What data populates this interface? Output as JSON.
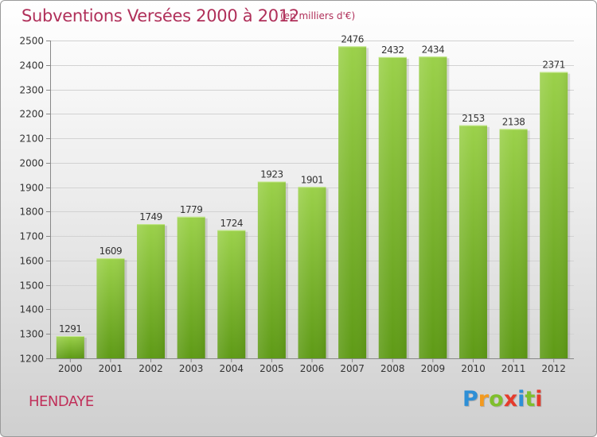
{
  "title": "Subventions Versées 2000 à 2012",
  "subtitle": "(en milliers d'€)",
  "place": "HENDAYE",
  "logo": {
    "text": "Proxiti",
    "letter_colors": [
      "#2e8fd6",
      "#f39a1f",
      "#7fbf2c",
      "#e53b2c",
      "#2e8fd6",
      "#7fbf2c",
      "#e53b2c"
    ]
  },
  "colors": {
    "bar_light": "#9bd14a",
    "bar_dark": "#5e9a16",
    "grid": "#d2d2d2",
    "text": "#333333",
    "accent": "#b0305a"
  },
  "chart_data": {
    "type": "bar",
    "title": "Subventions Versées 2000 à 2012",
    "subtitle": "(en milliers d'€)",
    "xlabel": "",
    "ylabel": "",
    "categories": [
      "2000",
      "2001",
      "2002",
      "2003",
      "2004",
      "2005",
      "2006",
      "2007",
      "2008",
      "2009",
      "2010",
      "2011",
      "2012"
    ],
    "values": [
      1291,
      1609,
      1749,
      1779,
      1724,
      1923,
      1901,
      2476,
      2432,
      2434,
      2153,
      2138,
      2371
    ],
    "ylim": [
      1200,
      2500
    ],
    "yticks": [
      1200,
      1300,
      1400,
      1500,
      1600,
      1700,
      1800,
      1900,
      2000,
      2100,
      2200,
      2300,
      2400,
      2500
    ],
    "grid": true,
    "data_labels": true,
    "legend": "none"
  }
}
